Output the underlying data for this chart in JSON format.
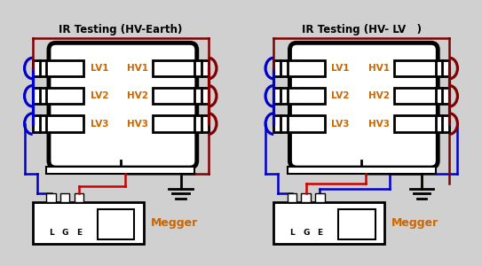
{
  "title1": "IR Testing (HV-Earth)",
  "title2": "IR Testing (HV- LV   )",
  "bg_color": "#d0d0d0",
  "lv_labels": [
    "LV1",
    "LV2",
    "LV3"
  ],
  "hv_labels": [
    "HV1",
    "HV2",
    "HV3"
  ],
  "megger_label": "Megger",
  "terminal_labels": [
    "L",
    "G",
    "E"
  ],
  "label_color": "#cc6600",
  "title_color": "#000000",
  "wire_blue": "#0000cc",
  "wire_red": "#cc0000",
  "wire_darkred": "#800000",
  "wire_black": "#000000",
  "lw_thick": 3.5,
  "lw_med": 2.0,
  "lw_wire": 1.8
}
